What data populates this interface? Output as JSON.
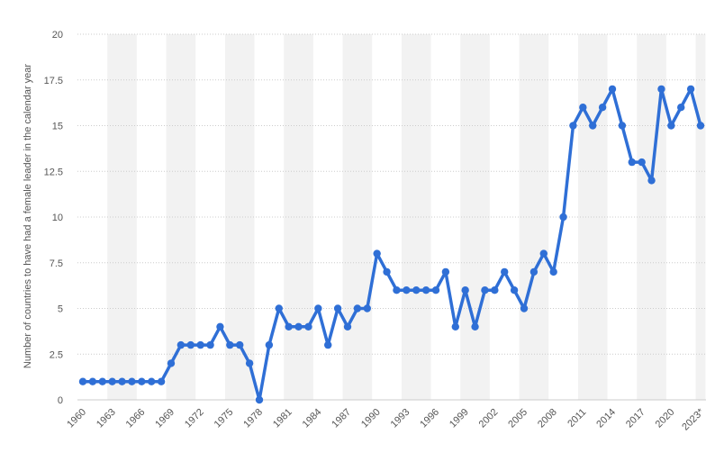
{
  "chart_data": {
    "type": "line",
    "ylabel": "Number of countries to have had a female leader in the calendar year",
    "ylim": [
      0,
      20
    ],
    "y_ticks": [
      "0",
      "2.5",
      "5",
      "7.5",
      "10",
      "12.5",
      "15",
      "17.5",
      "20"
    ],
    "x_tick_labels": [
      "1960",
      "1963",
      "1966",
      "1969",
      "1972",
      "1975",
      "1978",
      "1981",
      "1984",
      "1987",
      "1990",
      "1993",
      "1996",
      "1999",
      "2002",
      "2005",
      "2008",
      "2011",
      "2014",
      "2017",
      "2020",
      "2023*"
    ],
    "grid": true,
    "line_color": "#2f6fd6",
    "band_color": "#f2f2f2",
    "grid_color": "#cccccc",
    "series": [
      {
        "x": [
          "1960",
          "1961",
          "1962",
          "1963",
          "1964",
          "1965",
          "1966",
          "1967",
          "1968",
          "1969",
          "1970",
          "1971",
          "1972",
          "1973",
          "1974",
          "1975",
          "1976",
          "1977",
          "1978",
          "1979",
          "1980",
          "1981",
          "1982",
          "1983",
          "1984",
          "1985",
          "1986",
          "1987",
          "1988",
          "1989",
          "1990",
          "1991",
          "1992",
          "1993",
          "1994",
          "1995",
          "1996",
          "1997",
          "1998",
          "1999",
          "2000",
          "2001",
          "2002",
          "2003",
          "2004",
          "2005",
          "2006",
          "2007",
          "2008",
          "2009",
          "2010",
          "2011",
          "2012",
          "2013",
          "2014",
          "2015",
          "2016",
          "2017",
          "2018",
          "2019",
          "2020",
          "2021",
          "2022",
          "2023*"
        ],
        "values": [
          1,
          1,
          1,
          1,
          1,
          1,
          1,
          1,
          1,
          2,
          3,
          3,
          3,
          3,
          4,
          3,
          3,
          2,
          0,
          3,
          5,
          4,
          4,
          4,
          5,
          3,
          5,
          4,
          5,
          5,
          8,
          7,
          6,
          6,
          6,
          6,
          6,
          7,
          4,
          6,
          4,
          6,
          6,
          7,
          6,
          5,
          7,
          8,
          7,
          10,
          15,
          16,
          15,
          16,
          17,
          15,
          13,
          13,
          12,
          17,
          15,
          16,
          17,
          15
        ]
      }
    ]
  }
}
